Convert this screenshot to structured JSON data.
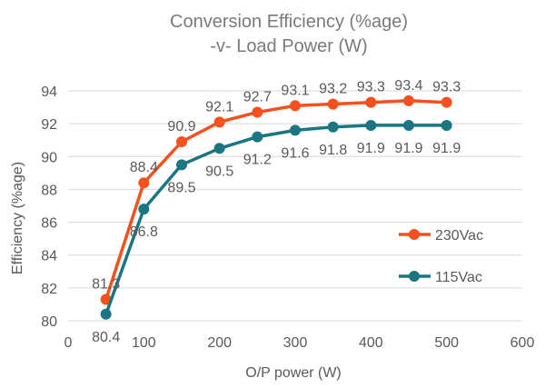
{
  "chart_data": {
    "type": "line",
    "title": [
      "Conversion Efficiency (%age)",
      "-v- Load Power (W)"
    ],
    "xlabel": "O/P power (W)",
    "ylabel": "Efficiency (%age)",
    "xlim": [
      0,
      600
    ],
    "ylim": [
      80,
      94
    ],
    "xticks": [
      0,
      100,
      200,
      300,
      400,
      500,
      600
    ],
    "yticks": [
      80,
      82,
      84,
      86,
      88,
      90,
      92,
      94
    ],
    "grid": "horizontal",
    "legend_position": "right",
    "series": [
      {
        "name": "230Vac",
        "color": "#f4511e",
        "x": [
          50,
          100,
          150,
          200,
          250,
          300,
          350,
          400,
          450,
          500
        ],
        "y": [
          81.3,
          88.4,
          90.9,
          92.1,
          92.7,
          93.1,
          93.2,
          93.3,
          93.4,
          93.3
        ],
        "labels": [
          "81.3",
          "88.4",
          "90.9",
          "92.1",
          "92.7",
          "93.1",
          "93.2",
          "93.3",
          "93.4",
          "93.3"
        ]
      },
      {
        "name": "115Vac",
        "color": "#1b7582",
        "x": [
          50,
          100,
          150,
          200,
          250,
          300,
          350,
          400,
          450,
          500
        ],
        "y": [
          80.4,
          86.8,
          89.5,
          90.5,
          91.2,
          91.6,
          91.8,
          91.9,
          91.9,
          91.9
        ],
        "labels": [
          "80.4",
          "86.8",
          "89.5",
          "90.5",
          "91.2",
          "91.6",
          "91.8",
          "91.9",
          "91.9",
          "91.9"
        ]
      }
    ]
  }
}
